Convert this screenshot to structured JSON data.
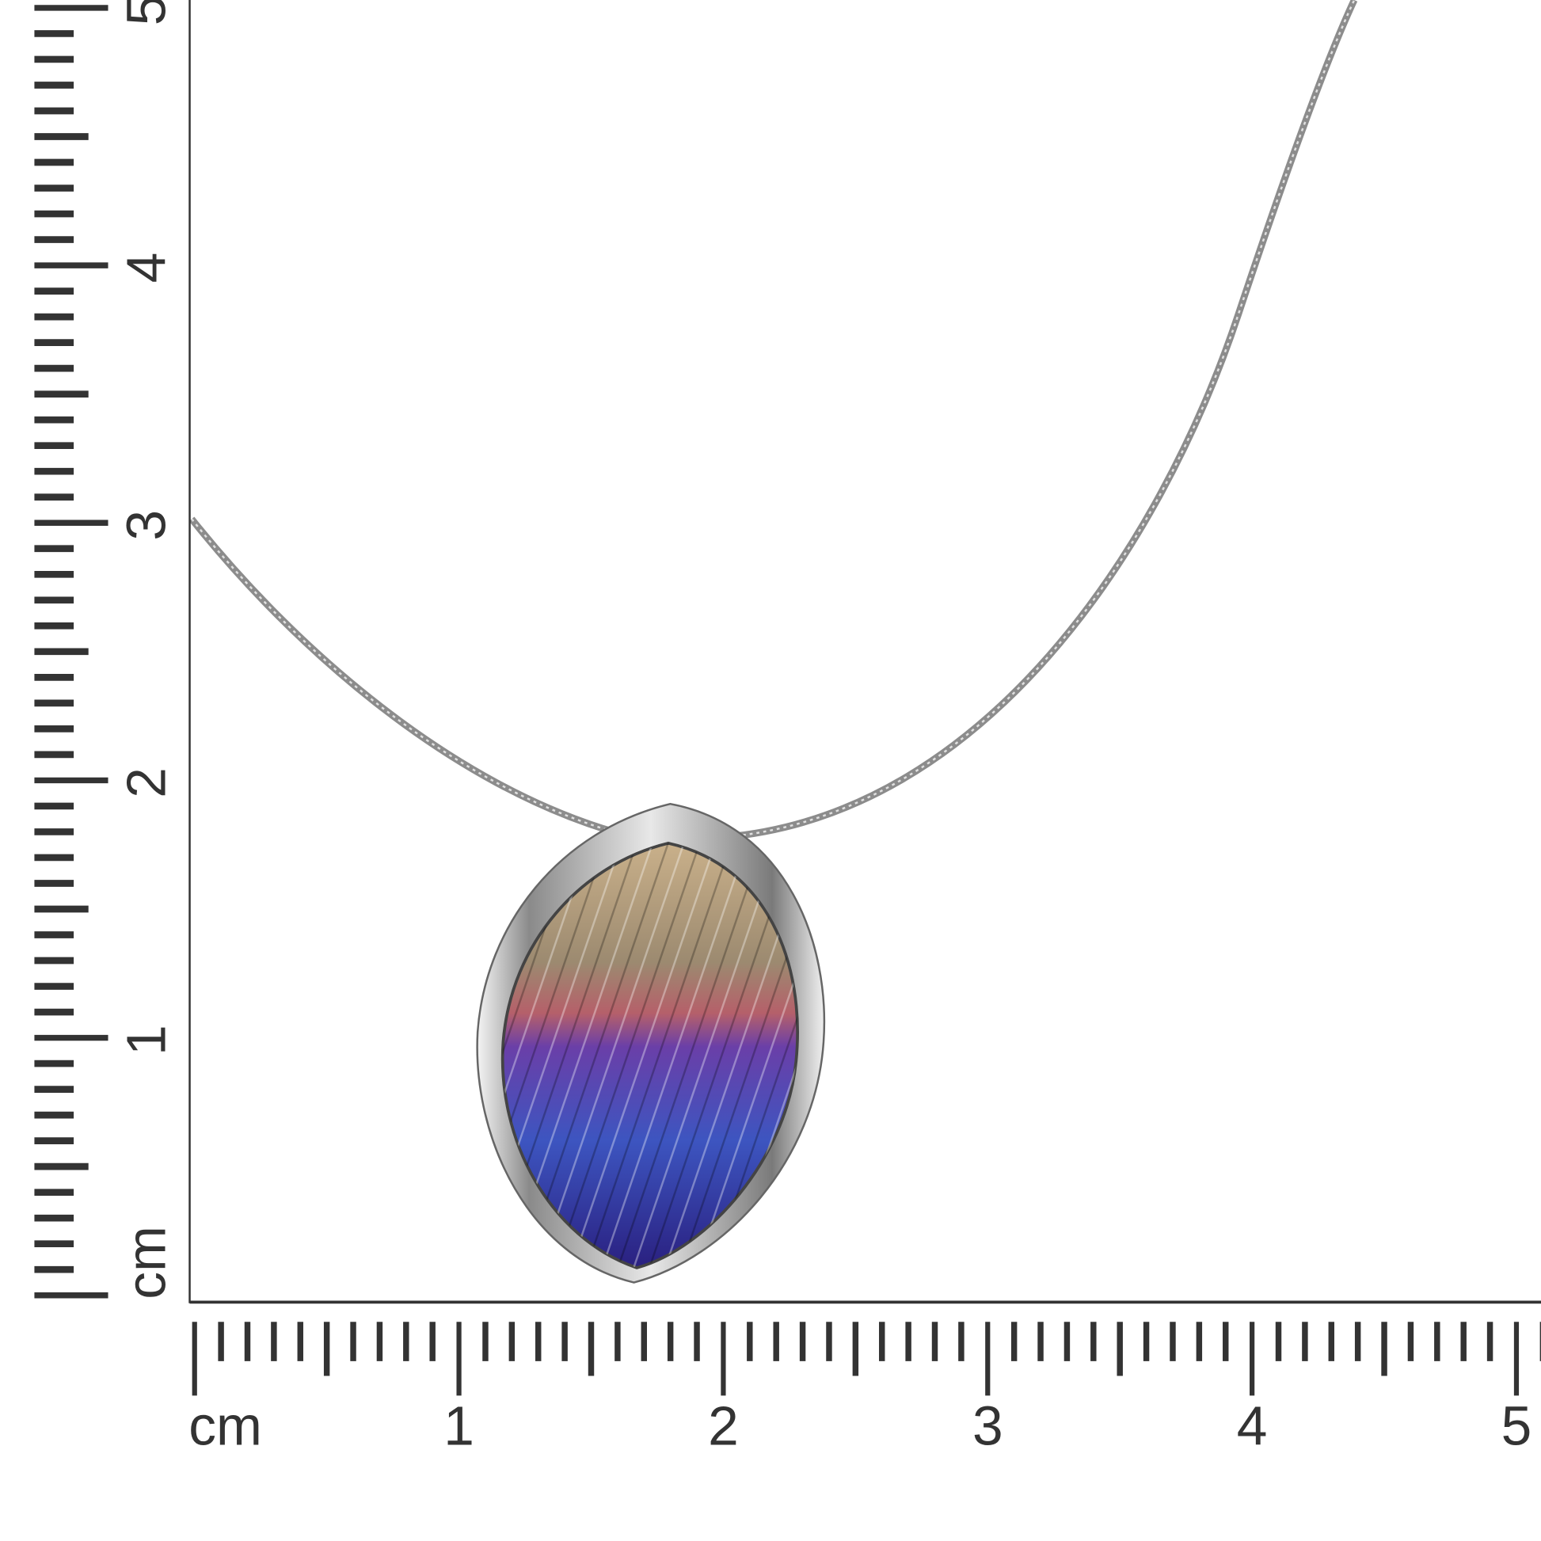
{
  "vertical_ruler": {
    "unit": "cm",
    "labels": [
      "1",
      "2",
      "3",
      "4",
      "5"
    ]
  },
  "horizontal_ruler": {
    "unit": "cm",
    "labels": [
      "1",
      "2",
      "3",
      "4",
      "5"
    ]
  },
  "product": {
    "type": "pendant necklace",
    "chain_color": "#9a9a9a",
    "bezel_color": "#d8d8d8",
    "gradient_colors": [
      "#b9a27a",
      "#9a7a6a",
      "#c0506a",
      "#5a3fb0",
      "#3a4fc0",
      "#2a2a8a"
    ]
  }
}
